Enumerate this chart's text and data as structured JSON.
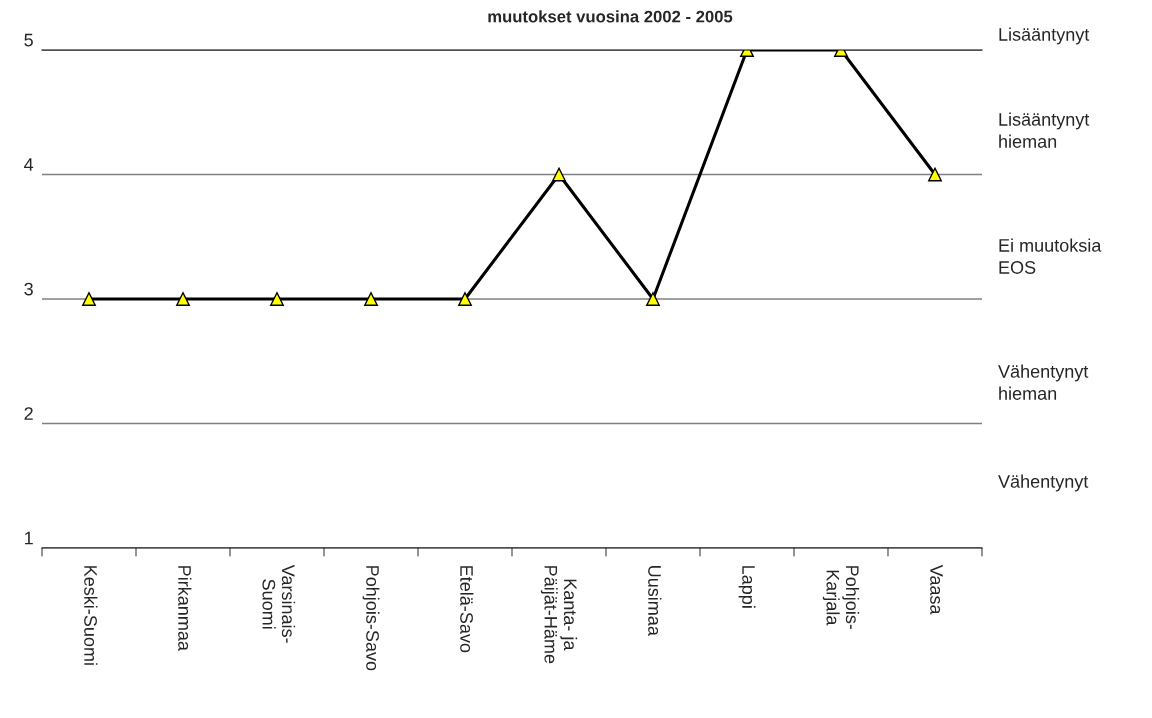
{
  "chart_data": {
    "type": "line",
    "title": "muutokset vuosina 2002 - 2005",
    "categories": [
      "Keski-Suomi",
      "Pirkanmaa",
      "Varsinais-\nSuomi",
      "Pohjois-Savo",
      "Etelä-Savo",
      "Kanta- ja\nPäijät-Häme",
      "Uusimaa",
      "Lappi",
      "Pohjois-\nKarjala",
      "Vaasa"
    ],
    "series": [
      {
        "color": "#000000",
        "values": [
          3,
          3,
          3,
          3,
          3,
          4,
          3,
          5,
          5,
          4
        ]
      }
    ],
    "marker": "triangle",
    "line_style": "solid",
    "ylim": [
      1,
      5
    ],
    "yticks": [
      1,
      2,
      3,
      4,
      5
    ],
    "grid": "y",
    "legend": false,
    "annotations": [
      "Lisääntynyt",
      "Lisääntynyt\nhieman",
      "Ei muutoksia\nEOS",
      "Vähentynyt\nhieman",
      "Vähentynyt"
    ]
  }
}
